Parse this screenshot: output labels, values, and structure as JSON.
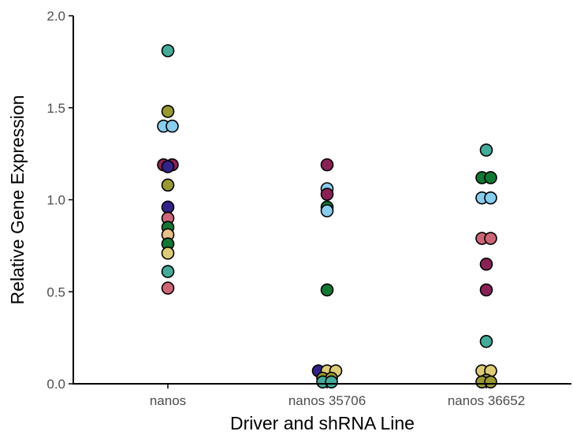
{
  "chart_data": {
    "type": "scatter",
    "xlabel": "Driver and shRNA Line",
    "ylabel": "Relative Gene Expression",
    "ylim": [
      0,
      2.0
    ],
    "y_ticks": [
      "0.0",
      "0.5",
      "1.0",
      "1.5",
      "2.0"
    ],
    "categories": [
      "nanos",
      "nanos 35706",
      "nanos 36652"
    ],
    "grid": false,
    "legend": "none",
    "marker_colors": {
      "teal": "#44AA99",
      "olive": "#999933",
      "lightblue": "#88CCEE",
      "wine": "#882255",
      "indigo": "#332288",
      "rose": "#CC6677",
      "green": "#117733",
      "sand": "#DDCC77",
      "peach": "#E8C08A"
    },
    "points": [
      {
        "category": "nanos",
        "y": 1.81,
        "color": "teal"
      },
      {
        "category": "nanos",
        "y": 1.48,
        "color": "olive"
      },
      {
        "category": "nanos",
        "y": 1.4,
        "color": "lightblue"
      },
      {
        "category": "nanos",
        "y": 1.4,
        "color": "lightblue"
      },
      {
        "category": "nanos",
        "y": 1.19,
        "color": "wine"
      },
      {
        "category": "nanos",
        "y": 1.19,
        "color": "wine"
      },
      {
        "category": "nanos",
        "y": 1.18,
        "color": "indigo"
      },
      {
        "category": "nanos",
        "y": 1.08,
        "color": "olive"
      },
      {
        "category": "nanos",
        "y": 0.96,
        "color": "indigo"
      },
      {
        "category": "nanos",
        "y": 0.9,
        "color": "rose"
      },
      {
        "category": "nanos",
        "y": 0.85,
        "color": "green"
      },
      {
        "category": "nanos",
        "y": 0.81,
        "color": "peach"
      },
      {
        "category": "nanos",
        "y": 0.76,
        "color": "green"
      },
      {
        "category": "nanos",
        "y": 0.71,
        "color": "sand"
      },
      {
        "category": "nanos",
        "y": 0.61,
        "color": "teal"
      },
      {
        "category": "nanos",
        "y": 0.52,
        "color": "rose"
      },
      {
        "category": "nanos 35706",
        "y": 1.19,
        "color": "wine"
      },
      {
        "category": "nanos 35706",
        "y": 1.06,
        "color": "lightblue"
      },
      {
        "category": "nanos 35706",
        "y": 1.03,
        "color": "wine"
      },
      {
        "category": "nanos 35706",
        "y": 0.96,
        "color": "green"
      },
      {
        "category": "nanos 35706",
        "y": 0.94,
        "color": "lightblue"
      },
      {
        "category": "nanos 35706",
        "y": 0.51,
        "color": "green"
      },
      {
        "category": "nanos 35706",
        "y": 0.07,
        "color": "indigo"
      },
      {
        "category": "nanos 35706",
        "y": 0.07,
        "color": "sand"
      },
      {
        "category": "nanos 35706",
        "y": 0.07,
        "color": "sand"
      },
      {
        "category": "nanos 35706",
        "y": 0.03,
        "color": "olive"
      },
      {
        "category": "nanos 35706",
        "y": 0.03,
        "color": "olive"
      },
      {
        "category": "nanos 35706",
        "y": 0.01,
        "color": "teal"
      },
      {
        "category": "nanos 35706",
        "y": 0.01,
        "color": "teal"
      },
      {
        "category": "nanos 36652",
        "y": 1.27,
        "color": "teal"
      },
      {
        "category": "nanos 36652",
        "y": 1.12,
        "color": "green"
      },
      {
        "category": "nanos 36652",
        "y": 1.12,
        "color": "green"
      },
      {
        "category": "nanos 36652",
        "y": 1.01,
        "color": "lightblue"
      },
      {
        "category": "nanos 36652",
        "y": 1.01,
        "color": "lightblue"
      },
      {
        "category": "nanos 36652",
        "y": 0.79,
        "color": "rose"
      },
      {
        "category": "nanos 36652",
        "y": 0.79,
        "color": "rose"
      },
      {
        "category": "nanos 36652",
        "y": 0.65,
        "color": "wine"
      },
      {
        "category": "nanos 36652",
        "y": 0.51,
        "color": "wine"
      },
      {
        "category": "nanos 36652",
        "y": 0.23,
        "color": "teal"
      },
      {
        "category": "nanos 36652",
        "y": 0.07,
        "color": "sand"
      },
      {
        "category": "nanos 36652",
        "y": 0.07,
        "color": "sand"
      },
      {
        "category": "nanos 36652",
        "y": 0.02,
        "color": "olive"
      },
      {
        "category": "nanos 36652",
        "y": 0.01,
        "color": "olive"
      },
      {
        "category": "nanos 36652",
        "y": 0.01,
        "color": "olive"
      }
    ]
  }
}
